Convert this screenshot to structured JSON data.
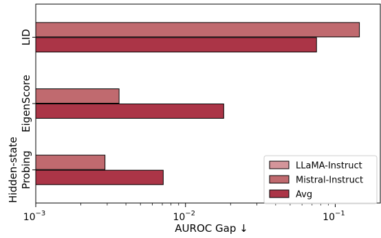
{
  "chart_data": {
    "type": "bar",
    "orientation": "horizontal",
    "categories": [
      "LID",
      "EigenScore",
      "Hidden-state Probing"
    ],
    "category_label_lines": [
      [
        "LID"
      ],
      [
        "EigenScore"
      ],
      [
        "Hidden-state",
        "Probing"
      ]
    ],
    "series": [
      {
        "name": "LLaMA-Instruct",
        "values": [
          null,
          null,
          null
        ],
        "color": "#d4959a"
      },
      {
        "name": "Mistral-Instruct",
        "values": [
          0.145,
          0.0036,
          0.0029
        ],
        "color": "#c06a6f"
      },
      {
        "name": "Avg",
        "values": [
          0.075,
          0.018,
          0.0071
        ],
        "color": "#ab3547"
      }
    ],
    "xlabel": "AUROC Gap ↓",
    "ylabel": "",
    "xscale": "log",
    "xlim": [
      0.001,
      0.2
    ],
    "xticks": [
      {
        "value": 0.001,
        "base": "10",
        "exp": "−3"
      },
      {
        "value": 0.01,
        "base": "10",
        "exp": "−2"
      },
      {
        "value": 0.1,
        "base": "10",
        "exp": "−1"
      }
    ],
    "grid": false,
    "legend_position": "lower-right"
  }
}
